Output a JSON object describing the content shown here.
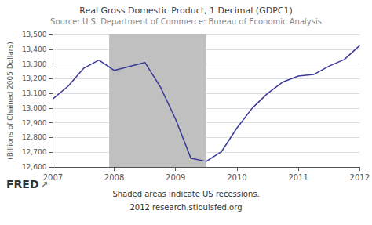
{
  "chart_data": {
    "type": "line",
    "title": "Real Gross Domestic Product, 1 Decimal (GDPC1)",
    "subtitle": "Source: U.S. Department of Commerce: Bureau of Economic Analysis",
    "ylabel": "(Billions of Chained 2005 Dollars)",
    "annotations": [
      "Shaded areas indicate US recessions.",
      "2012 research.stlouisfed.org",
      "FRED",
      "↗"
    ],
    "x": [
      2007.0,
      2007.25,
      2007.5,
      2007.75,
      2008.0,
      2008.25,
      2008.5,
      2008.75,
      2009.0,
      2009.25,
      2009.5,
      2009.75,
      2010.0,
      2010.25,
      2010.5,
      2010.75,
      2011.0,
      2011.25,
      2011.5,
      2011.75,
      2012.0
    ],
    "values": [
      13063,
      13150,
      13270,
      13326,
      13256,
      13283,
      13310,
      13145,
      12925,
      12658,
      12638,
      12705,
      12865,
      13000,
      13100,
      13178,
      13218,
      13228,
      13285,
      13330,
      13425
    ],
    "color": "#3a3a9a",
    "shaded_regions": [
      {
        "start": 2007.917,
        "end": 2009.5,
        "color": "#c0c0c0"
      }
    ],
    "xlim": [
      2007.0,
      2012.0
    ],
    "xticks": [
      2007,
      2008,
      2009,
      2010,
      2011,
      2012
    ],
    "ylim": [
      12600,
      13500
    ],
    "yticks": [
      {
        "value": 12600,
        "label": "12,600"
      },
      {
        "value": 12700,
        "label": "12,700"
      },
      {
        "value": 12800,
        "label": "12,800"
      },
      {
        "value": 12900,
        "label": "12,900"
      },
      {
        "value": 13000,
        "label": "13,000"
      },
      {
        "value": 13100,
        "label": "13,100"
      },
      {
        "value": 13200,
        "label": "13,200"
      },
      {
        "value": 13300,
        "label": "13,300"
      },
      {
        "value": 13400,
        "label": "13,400"
      },
      {
        "value": 13500,
        "label": "13,500"
      }
    ],
    "grid": true
  }
}
